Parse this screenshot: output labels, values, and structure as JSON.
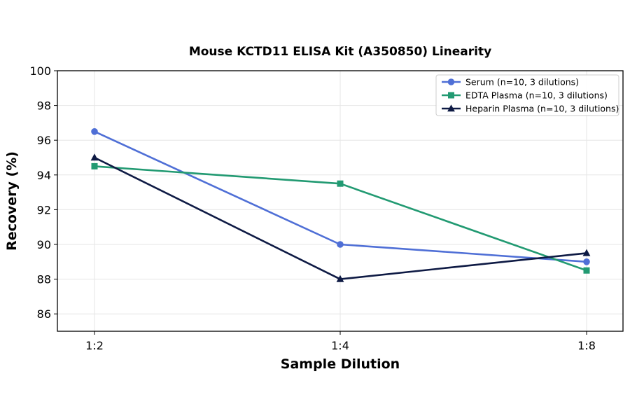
{
  "chart_data": {
    "type": "line",
    "title": "Mouse KCTD11 ELISA Kit (A350850) Linearity",
    "xlabel": "Sample Dilution",
    "ylabel": "Recovery (%)",
    "categories": [
      "1:2",
      "1:4",
      "1:8"
    ],
    "ylim": [
      85,
      100
    ],
    "yticks": [
      86,
      88,
      90,
      92,
      94,
      96,
      98,
      100
    ],
    "grid": true,
    "legend_position": "top-right",
    "series": [
      {
        "name": "Serum (n=10, 3 dilutions)",
        "values": [
          96.5,
          90.0,
          89.0
        ],
        "color": "#4f6fd6",
        "marker": "circle"
      },
      {
        "name": "EDTA Plasma (n=10, 3 dilutions)",
        "values": [
          94.5,
          93.5,
          88.5
        ],
        "color": "#229a72",
        "marker": "square"
      },
      {
        "name": "Heparin Plasma (n=10, 3 dilutions)",
        "values": [
          95.0,
          88.0,
          89.5
        ],
        "color": "#0e1a44",
        "marker": "triangle"
      }
    ]
  }
}
